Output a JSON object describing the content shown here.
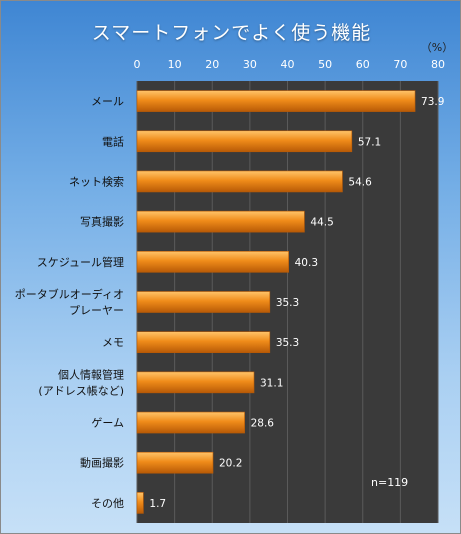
{
  "chart_data": {
    "type": "bar",
    "orientation": "horizontal",
    "title": "スマートフォンでよく使う機能",
    "unit_label": "（%）",
    "note": "n=119",
    "categories": [
      [
        "メール"
      ],
      [
        "電話"
      ],
      [
        "ネット検索"
      ],
      [
        "写真撮影"
      ],
      [
        "スケジュール管理"
      ],
      [
        "ポータブルオーディオ",
        "プレーヤー"
      ],
      [
        "メモ"
      ],
      [
        "個人情報管理",
        "(アドレス帳など)"
      ],
      [
        "ゲーム"
      ],
      [
        "動画撮影"
      ],
      [
        "その他"
      ]
    ],
    "values": [
      73.9,
      57.1,
      54.6,
      44.5,
      40.3,
      35.3,
      35.3,
      31.1,
      28.6,
      20.2,
      1.7
    ],
    "value_labels": [
      "73.9",
      "57.1",
      "54.6",
      "44.5",
      "40.3",
      "35.3",
      "35.3",
      "31.1",
      "28.6",
      "20.2",
      "1.7"
    ],
    "xlim": [
      0,
      80
    ],
    "ticks": [
      0,
      10,
      20,
      30,
      40,
      50,
      60,
      70,
      80
    ],
    "grid": true,
    "legend": "none",
    "colors": {
      "bar": "#f08c1a",
      "bar_light": "#ffc46a",
      "bar_dark": "#b85a06",
      "plot_bg": "#3a3a3a",
      "grid": "#5a5a5a"
    }
  }
}
